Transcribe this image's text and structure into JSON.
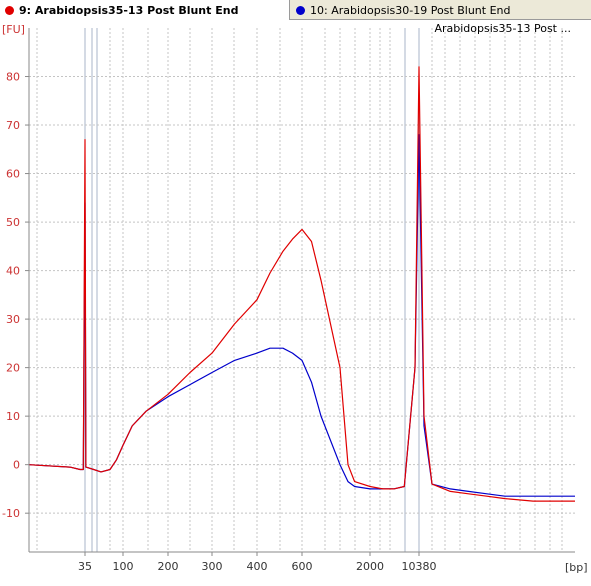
{
  "tabs": [
    {
      "label": "9: Arabidopsis35-13 Post Blunt End",
      "color": "#e00000",
      "active": true
    },
    {
      "label": "10: Arabidopsis30-19 Post Blunt End",
      "color": "#0000cc",
      "active": false
    }
  ],
  "legend_title": "Arabidopsis35-13 Post ...",
  "chart_data": {
    "type": "line",
    "y_unit": "[FU]",
    "x_unit": "[bp]",
    "ylim": [
      -18,
      90
    ],
    "y_ticks": [
      -10,
      0,
      10,
      20,
      30,
      40,
      50,
      60,
      70,
      80
    ],
    "x_axis_scale": "electropherogram migration (bp labels)",
    "x_ticks": [
      "35",
      "100",
      "200",
      "300",
      "400",
      "600",
      "2000",
      "10380"
    ],
    "grid": true,
    "series": [
      {
        "name": "9: Arabidopsis35-13 Post Blunt End",
        "color": "#e00000",
        "points": [
          [
            "10",
            0.0
          ],
          [
            "25",
            -0.5
          ],
          [
            "32",
            -1.0
          ],
          [
            "34",
            -1.0
          ],
          [
            "35",
            67.0
          ],
          [
            "36",
            -0.5
          ],
          [
            "45",
            -1.0
          ],
          [
            "55",
            -1.5
          ],
          [
            "70",
            -1.0
          ],
          [
            "85",
            1.0
          ],
          [
            "100",
            4.0
          ],
          [
            "120",
            8.0
          ],
          [
            "150",
            11.0
          ],
          [
            "200",
            14.5
          ],
          [
            "250",
            19.0
          ],
          [
            "300",
            23.0
          ],
          [
            "350",
            29.0
          ],
          [
            "400",
            34.0
          ],
          [
            "450",
            39.5
          ],
          [
            "500",
            44.0
          ],
          [
            "550",
            46.5
          ],
          [
            "600",
            48.5
          ],
          [
            "650",
            46.0
          ],
          [
            "700",
            38.0
          ],
          [
            "800",
            20.0
          ],
          [
            "1000",
            0.0
          ],
          [
            "1300",
            -3.5
          ],
          [
            "2000",
            -4.5
          ],
          [
            "4000",
            -5.0
          ],
          [
            "6000",
            -5.0
          ],
          [
            "8000",
            -4.5
          ],
          [
            "10000",
            20.0
          ],
          [
            "10380",
            82.0
          ],
          [
            "11000",
            10.0
          ],
          [
            "12000",
            -4.0
          ],
          [
            "14000",
            -5.5
          ],
          [
            "16000",
            -6.0
          ],
          [
            "18000",
            -6.5
          ],
          [
            "20000",
            -7.0
          ],
          [
            "22000",
            -7.5
          ],
          [
            "25000",
            -7.5
          ]
        ]
      },
      {
        "name": "10: Arabidopsis30-19 Post Blunt End",
        "color": "#0000cc",
        "points": [
          [
            "10",
            0.0
          ],
          [
            "25",
            -0.5
          ],
          [
            "32",
            -1.0
          ],
          [
            "34",
            -1.0
          ],
          [
            "35",
            54.0
          ],
          [
            "36",
            -0.5
          ],
          [
            "45",
            -1.0
          ],
          [
            "55",
            -1.5
          ],
          [
            "70",
            -1.0
          ],
          [
            "85",
            1.0
          ],
          [
            "100",
            4.0
          ],
          [
            "120",
            8.0
          ],
          [
            "150",
            11.0
          ],
          [
            "200",
            14.0
          ],
          [
            "250",
            16.5
          ],
          [
            "300",
            19.0
          ],
          [
            "350",
            21.5
          ],
          [
            "400",
            23.0
          ],
          [
            "450",
            24.0
          ],
          [
            "500",
            24.0
          ],
          [
            "550",
            23.0
          ],
          [
            "600",
            21.5
          ],
          [
            "650",
            17.0
          ],
          [
            "700",
            10.0
          ],
          [
            "800",
            0.0
          ],
          [
            "1000",
            -3.5
          ],
          [
            "1300",
            -4.5
          ],
          [
            "2000",
            -5.0
          ],
          [
            "4000",
            -5.0
          ],
          [
            "6000",
            -5.0
          ],
          [
            "8000",
            -4.5
          ],
          [
            "10000",
            20.0
          ],
          [
            "10380",
            68.0
          ],
          [
            "11000",
            8.0
          ],
          [
            "12000",
            -4.0
          ],
          [
            "14000",
            -5.0
          ],
          [
            "16000",
            -5.5
          ],
          [
            "18000",
            -6.0
          ],
          [
            "20000",
            -6.5
          ],
          [
            "22000",
            -6.5
          ],
          [
            "25000",
            -6.5
          ]
        ]
      }
    ]
  }
}
